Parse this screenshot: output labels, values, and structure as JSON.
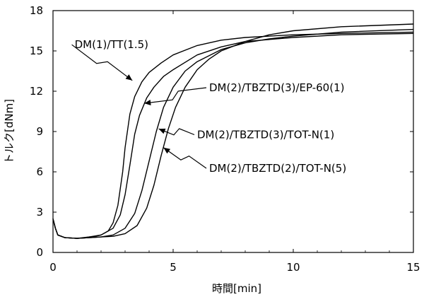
{
  "chart_data": {
    "type": "line",
    "xlabel": "時間[min]",
    "ylabel": "トルク[dNm]",
    "xlim": [
      0,
      15
    ],
    "ylim": [
      0,
      18
    ],
    "xticks": [
      0,
      5,
      10,
      15
    ],
    "yticks": [
      0,
      3,
      6,
      9,
      12,
      15,
      18
    ],
    "grid": false,
    "legend": "none",
    "series": [
      {
        "name": "DM(1)/TT(1.5)",
        "points": [
          [
            0,
            2.5
          ],
          [
            0.1,
            1.8
          ],
          [
            0.2,
            1.3
          ],
          [
            0.5,
            1.1
          ],
          [
            1.0,
            1.05
          ],
          [
            1.5,
            1.15
          ],
          [
            2.0,
            1.3
          ],
          [
            2.3,
            1.6
          ],
          [
            2.5,
            2.2
          ],
          [
            2.7,
            3.5
          ],
          [
            2.9,
            6.0
          ],
          [
            3.0,
            7.8
          ],
          [
            3.2,
            10.3
          ],
          [
            3.4,
            11.6
          ],
          [
            3.7,
            12.7
          ],
          [
            4.0,
            13.4
          ],
          [
            4.5,
            14.1
          ],
          [
            5.0,
            14.7
          ],
          [
            6.0,
            15.4
          ],
          [
            7.0,
            15.8
          ],
          [
            8.0,
            16.0
          ],
          [
            10.0,
            16.2
          ],
          [
            12.0,
            16.3
          ],
          [
            15.0,
            16.4
          ]
        ]
      },
      {
        "name": "DM(2)/TBZTD(3)/EP-60(1)",
        "points": [
          [
            0,
            2.5
          ],
          [
            0.1,
            1.8
          ],
          [
            0.2,
            1.3
          ],
          [
            0.5,
            1.1
          ],
          [
            1.0,
            1.05
          ],
          [
            1.5,
            1.1
          ],
          [
            2.0,
            1.3
          ],
          [
            2.5,
            1.8
          ],
          [
            2.8,
            2.8
          ],
          [
            3.0,
            4.3
          ],
          [
            3.2,
            6.5
          ],
          [
            3.4,
            8.8
          ],
          [
            3.6,
            10.2
          ],
          [
            3.9,
            11.5
          ],
          [
            4.2,
            12.3
          ],
          [
            4.6,
            13.1
          ],
          [
            5.0,
            13.6
          ],
          [
            6.0,
            14.7
          ],
          [
            7.0,
            15.3
          ],
          [
            8.0,
            15.7
          ],
          [
            10.0,
            16.0
          ],
          [
            12.0,
            16.2
          ],
          [
            15.0,
            16.3
          ]
        ]
      },
      {
        "name": "DM(2)/TBZTD(3)/TOT-N(1)",
        "points": [
          [
            0,
            2.5
          ],
          [
            0.1,
            1.8
          ],
          [
            0.2,
            1.3
          ],
          [
            0.5,
            1.1
          ],
          [
            1.0,
            1.05
          ],
          [
            1.5,
            1.1
          ],
          [
            2.0,
            1.15
          ],
          [
            2.5,
            1.3
          ],
          [
            3.0,
            1.8
          ],
          [
            3.4,
            2.9
          ],
          [
            3.7,
            4.6
          ],
          [
            4.0,
            6.8
          ],
          [
            4.3,
            9.0
          ],
          [
            4.6,
            10.8
          ],
          [
            5.0,
            12.3
          ],
          [
            5.5,
            13.5
          ],
          [
            6.0,
            14.2
          ],
          [
            7.0,
            15.1
          ],
          [
            8.0,
            15.6
          ],
          [
            9.0,
            15.9
          ],
          [
            10.0,
            16.1
          ],
          [
            12.0,
            16.4
          ],
          [
            15.0,
            16.6
          ]
        ]
      },
      {
        "name": "DM(2)/TBZTD(2)/TOT-N(5)",
        "points": [
          [
            0,
            2.5
          ],
          [
            0.1,
            1.8
          ],
          [
            0.2,
            1.3
          ],
          [
            0.5,
            1.1
          ],
          [
            1.0,
            1.05
          ],
          [
            1.5,
            1.1
          ],
          [
            2.0,
            1.15
          ],
          [
            2.5,
            1.2
          ],
          [
            3.0,
            1.4
          ],
          [
            3.5,
            2.0
          ],
          [
            3.9,
            3.3
          ],
          [
            4.2,
            5.0
          ],
          [
            4.5,
            7.2
          ],
          [
            4.8,
            9.2
          ],
          [
            5.1,
            10.8
          ],
          [
            5.5,
            12.3
          ],
          [
            6.0,
            13.6
          ],
          [
            6.5,
            14.4
          ],
          [
            7.0,
            15.0
          ],
          [
            8.0,
            15.7
          ],
          [
            9.0,
            16.2
          ],
          [
            10.0,
            16.5
          ],
          [
            12.0,
            16.8
          ],
          [
            15.0,
            17.0
          ]
        ]
      }
    ],
    "annotations": [
      {
        "text": "DM(1)/TT(1.5)",
        "label_x": 0.9,
        "label_y": 15.2,
        "arrow_to": [
          3.3,
          12.8
        ]
      },
      {
        "text": "DM(2)/TBZTD(3)/EP-60(1)",
        "label_x": 6.5,
        "label_y": 12.0,
        "arrow_to": [
          3.8,
          11.1
        ]
      },
      {
        "text": "DM(2)/TBZTD(3)/TOT-N(1)",
        "label_x": 6.0,
        "label_y": 8.5,
        "arrow_to": [
          4.4,
          9.2
        ]
      },
      {
        "text": "DM(2)/TBZTD(2)/TOT-N(5)",
        "label_x": 6.5,
        "label_y": 6.0,
        "arrow_to": [
          4.6,
          7.8
        ]
      }
    ]
  }
}
